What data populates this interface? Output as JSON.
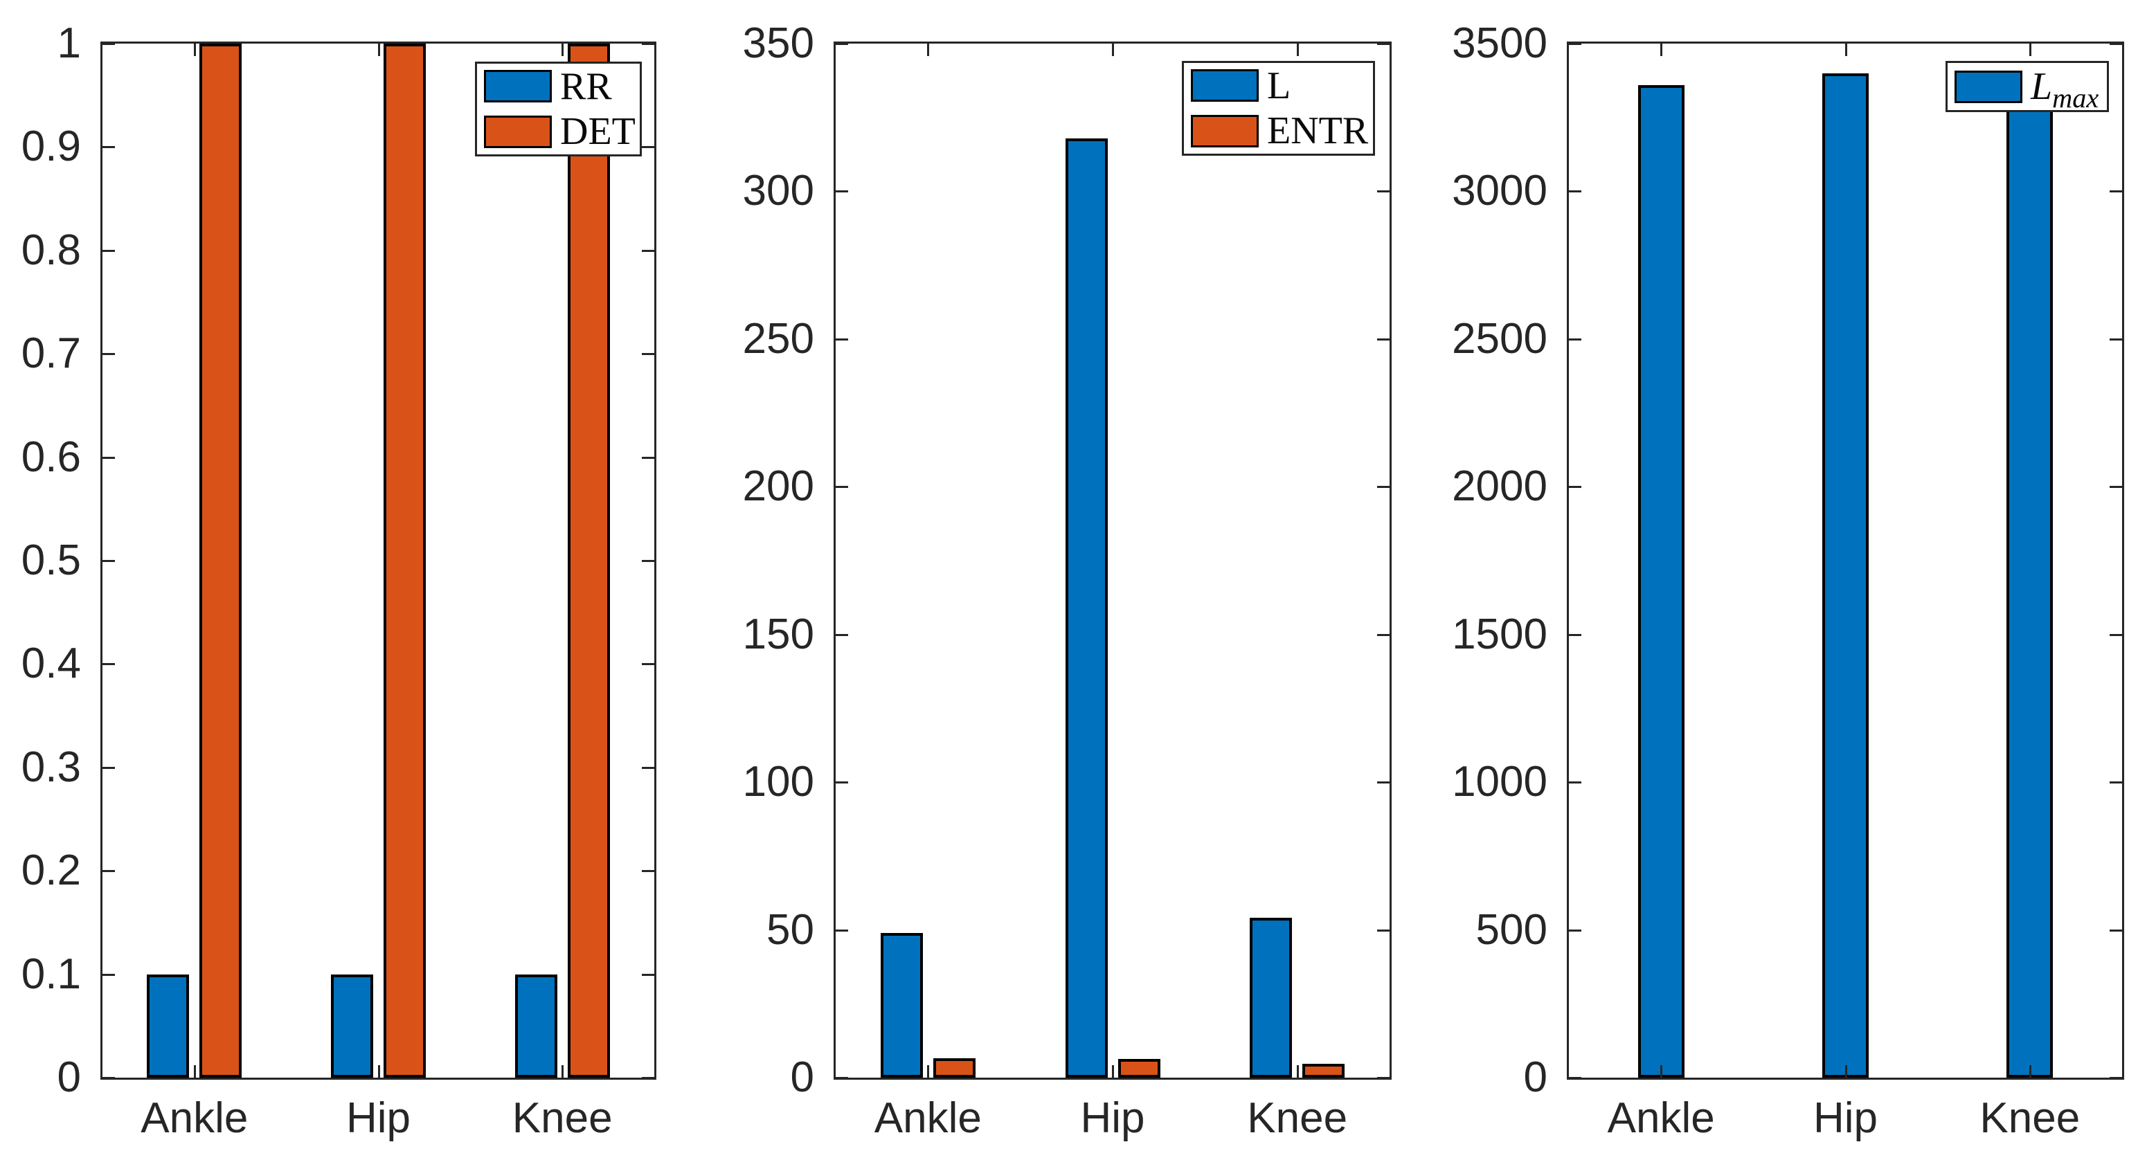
{
  "figure": {
    "background": "#ffffff",
    "axis_color": "#262626",
    "bar_edge_color": "#000000",
    "series_colors": {
      "blue": "#0072BD",
      "orange": "#D95319"
    }
  },
  "chart_data": [
    {
      "type": "bar",
      "title": "",
      "xlabel": "",
      "ylabel": "",
      "categories": [
        "Ankle",
        "Hip",
        "Knee"
      ],
      "series": [
        {
          "name": "RR",
          "color": "#0072BD",
          "values": [
            0.1,
            0.1,
            0.1
          ]
        },
        {
          "name": "DET",
          "color": "#D95319",
          "values": [
            1,
            1,
            1
          ]
        }
      ],
      "ylim": [
        0,
        1
      ],
      "yticks": [
        0,
        0.1,
        0.2,
        0.3,
        0.4,
        0.5,
        0.6,
        0.7,
        0.8,
        0.9,
        1
      ],
      "ytick_labels": [
        "0",
        "0.1",
        "0.2",
        "0.3",
        "0.4",
        "0.5",
        "0.6",
        "0.7",
        "0.8",
        "0.9",
        "1"
      ],
      "grid": false,
      "legend": {
        "labels": [
          "RR",
          "DET"
        ],
        "position": "top-right"
      }
    },
    {
      "type": "bar",
      "title": "",
      "xlabel": "",
      "ylabel": "",
      "categories": [
        "Ankle",
        "Hip",
        "Knee"
      ],
      "series": [
        {
          "name": "L",
          "color": "#0072BD",
          "values": [
            49,
            318,
            54
          ]
        },
        {
          "name": "ENTR",
          "color": "#D95319",
          "values": [
            6.5,
            6.3,
            4.6
          ]
        }
      ],
      "ylim": [
        0,
        350
      ],
      "yticks": [
        0,
        50,
        100,
        150,
        200,
        250,
        300,
        350
      ],
      "ytick_labels": [
        "0",
        "50",
        "100",
        "150",
        "200",
        "250",
        "300",
        "350"
      ],
      "grid": false,
      "legend": {
        "labels": [
          "L",
          "ENTR"
        ],
        "position": "top-right"
      }
    },
    {
      "type": "bar",
      "title": "",
      "xlabel": "",
      "ylabel": "",
      "categories": [
        "Ankle",
        "Hip",
        "Knee"
      ],
      "series": [
        {
          "name": "L_max",
          "color": "#0072BD",
          "values": [
            3360,
            3400,
            3300
          ]
        }
      ],
      "ylim": [
        0,
        3500
      ],
      "yticks": [
        0,
        500,
        1000,
        1500,
        2000,
        2500,
        3000,
        3500
      ],
      "ytick_labels": [
        "0",
        "500",
        "1000",
        "1500",
        "2000",
        "2500",
        "3000",
        "3500"
      ],
      "grid": false,
      "legend": {
        "labels": [
          "L_max"
        ],
        "position": "top-right"
      }
    }
  ]
}
